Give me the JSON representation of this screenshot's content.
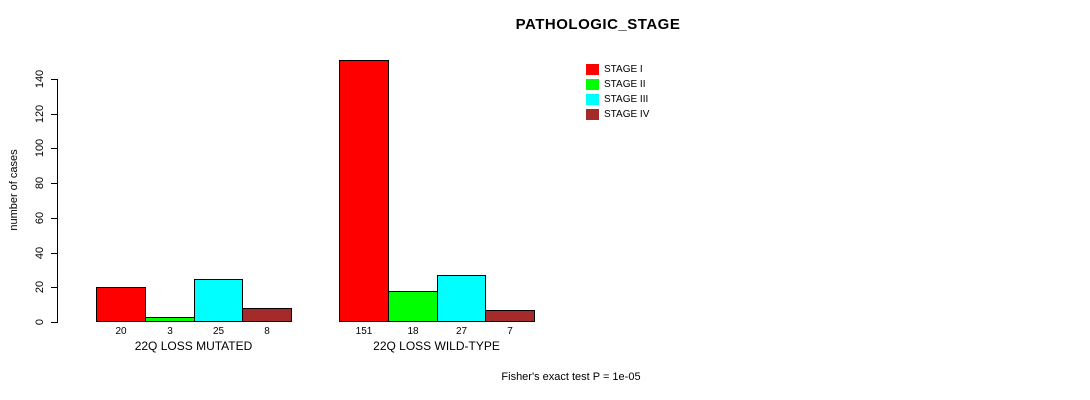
{
  "chart_data": {
    "type": "bar",
    "title": "PATHOLOGIC_STAGE",
    "ylabel": "number of cases",
    "xlabel": "",
    "ylim": [
      0,
      151
    ],
    "yticks": [
      0,
      20,
      40,
      60,
      80,
      100,
      120,
      140
    ],
    "grid": false,
    "legend_position": "top-right",
    "background_color": "#ffffff",
    "bar_border_color": "#000000",
    "series": [
      {
        "name": "STAGE I",
        "color": "#ff0000"
      },
      {
        "name": "STAGE II",
        "color": "#00ff00"
      },
      {
        "name": "STAGE III",
        "color": "#00ffff"
      },
      {
        "name": "STAGE IV",
        "color": "#a52a2a"
      }
    ],
    "groups": [
      {
        "label": "22Q LOSS MUTATED",
        "values": [
          20,
          3,
          25,
          8
        ]
      },
      {
        "label": "22Q LOSS WILD-TYPE",
        "values": [
          151,
          18,
          27,
          7
        ]
      }
    ],
    "annotation": "Fisher's exact test P = 1e-05"
  }
}
